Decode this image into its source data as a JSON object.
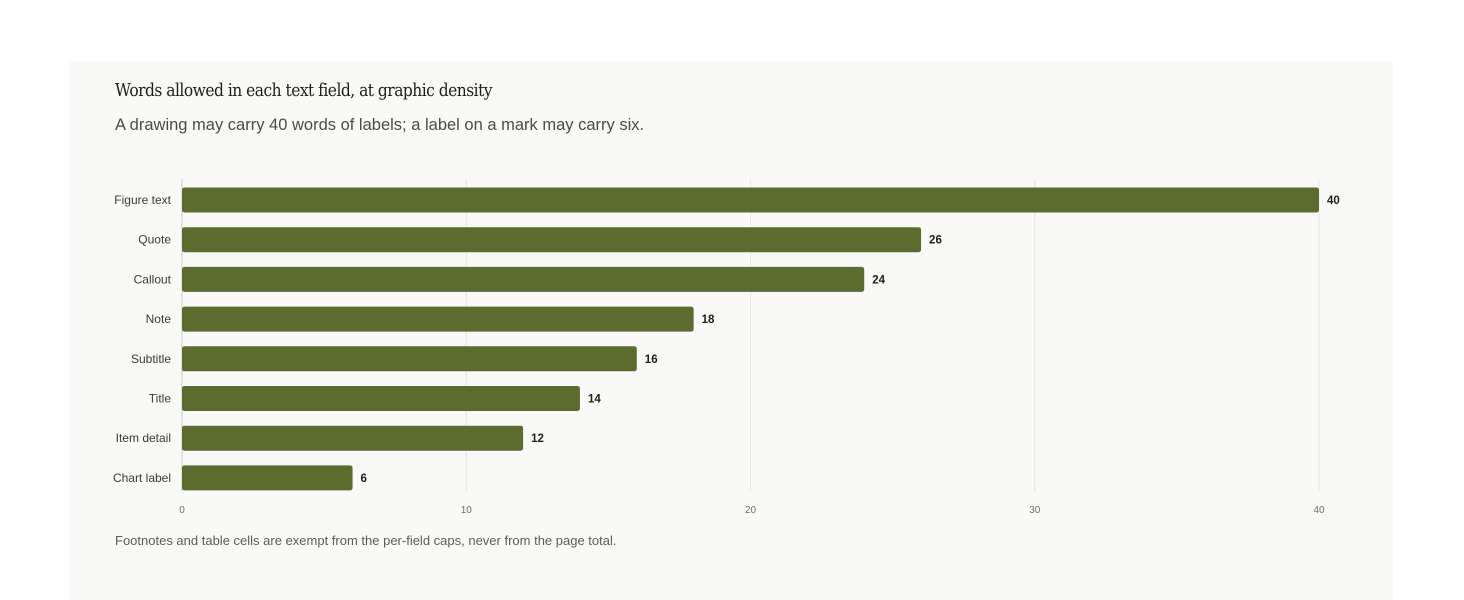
{
  "chart_data": {
    "type": "bar",
    "orientation": "horizontal",
    "title": "Words allowed in each text field, at graphic density",
    "subtitle": "A drawing may carry 40 words of labels; a label on a mark may carry six.",
    "categories": [
      "Figure text",
      "Quote",
      "Callout",
      "Note",
      "Subtitle",
      "Title",
      "Item detail",
      "Chart label"
    ],
    "values": [
      40,
      26,
      24,
      18,
      16,
      14,
      12,
      6
    ],
    "xticks": [
      0,
      10,
      20,
      30,
      40
    ],
    "xlim": [
      0,
      40
    ],
    "xlabel": "",
    "ylabel": "",
    "grid": true,
    "legend": "none",
    "bar_color": "#5c6c2f",
    "footnote": "Footnotes and table cells are exempt from the per-field caps, never from the page total."
  }
}
